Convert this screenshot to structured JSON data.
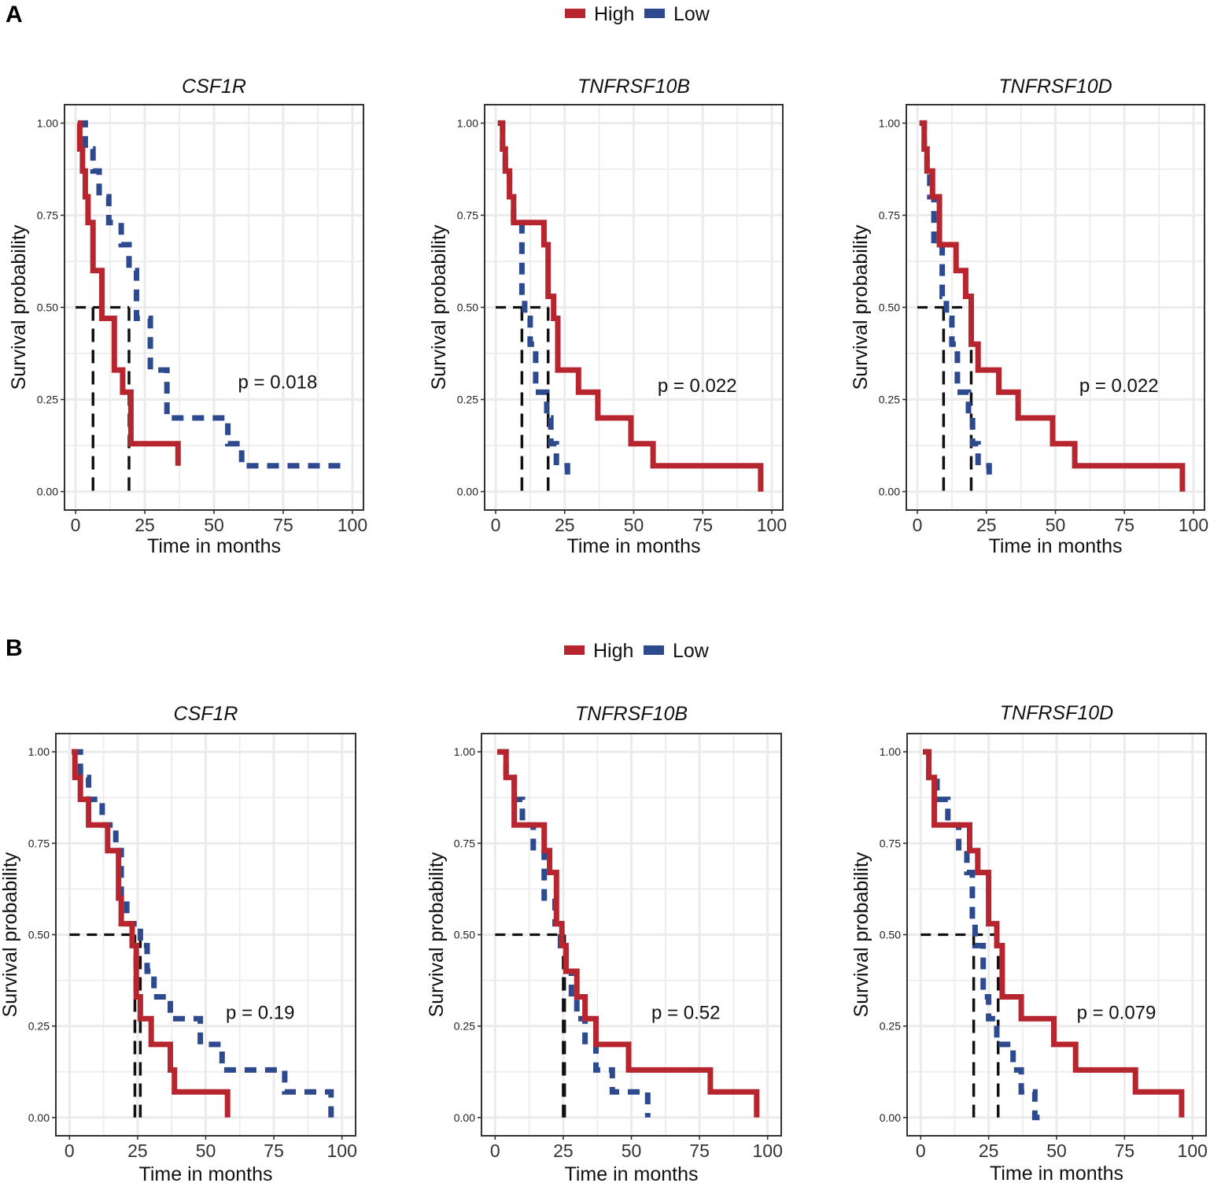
{
  "panels": [
    {
      "letter": "A",
      "legend": {
        "items": [
          {
            "label": "High",
            "color": "#B7252E"
          },
          {
            "label": "Low",
            "color": "#2E4A8F"
          }
        ]
      }
    },
    {
      "letter": "B",
      "legend": {
        "items": [
          {
            "label": "High",
            "color": "#B7252E"
          },
          {
            "label": "Low",
            "color": "#2E4A8F"
          }
        ]
      }
    }
  ],
  "chart_data": [
    {
      "panel": "A",
      "type": "line",
      "title": "CSF1R",
      "xlabel": "Time in months",
      "ylabel": "Survival probability",
      "xlim": [
        -4,
        104
      ],
      "ylim": [
        -0.05,
        1.05
      ],
      "xticks": [
        0,
        25,
        50,
        75,
        100
      ],
      "yticks": [
        0,
        0.25,
        0.5,
        0.75,
        1.0
      ],
      "ytick_labels": [
        "0.00",
        "0.25",
        "0.50",
        "0.75",
        "1.00"
      ],
      "pvalue": "p = 0.018",
      "pvalue_pos": [
        73,
        0.28
      ],
      "median_lines": [
        6.3,
        19.3
      ],
      "series": [
        {
          "name": "High",
          "color": "#B7252E",
          "dashed": false,
          "x": [
            0.8,
            1.5,
            2.5,
            3.5,
            4.5,
            6.3,
            9.5,
            14,
            17,
            20,
            37
          ],
          "y": [
            1.0,
            0.93,
            0.87,
            0.8,
            0.73,
            0.6,
            0.47,
            0.33,
            0.27,
            0.13,
            0.07
          ]
        },
        {
          "name": "Low",
          "color": "#2E4A8F",
          "dashed": true,
          "x": [
            0.8,
            3.5,
            6.3,
            8.5,
            12,
            16.5,
            19.3,
            22,
            27,
            33,
            50,
            55,
            60,
            97
          ],
          "y": [
            1.0,
            0.93,
            0.87,
            0.8,
            0.73,
            0.67,
            0.6,
            0.47,
            0.33,
            0.2,
            0.2,
            0.13,
            0.07,
            0.07
          ]
        }
      ]
    },
    {
      "panel": "A",
      "type": "line",
      "title": "TNFRSF10B",
      "xlabel": "Time in months",
      "ylabel": "Survival probability",
      "xlim": [
        -4,
        104
      ],
      "ylim": [
        -0.05,
        1.05
      ],
      "xticks": [
        0,
        25,
        50,
        75,
        100
      ],
      "yticks": [
        0,
        0.25,
        0.5,
        0.75,
        1.0
      ],
      "ytick_labels": [
        "0.00",
        "0.25",
        "0.50",
        "0.75",
        "1.00"
      ],
      "pvalue": "p = 0.022",
      "pvalue_pos": [
        73,
        0.27
      ],
      "median_lines": [
        9.5,
        19
      ],
      "series": [
        {
          "name": "High",
          "color": "#B7252E",
          "dashed": false,
          "x": [
            0.8,
            2.5,
            3.5,
            5,
            6.5,
            17.5,
            19,
            21,
            22.5,
            30,
            37,
            49,
            57,
            96
          ],
          "y": [
            1.0,
            0.93,
            0.87,
            0.8,
            0.73,
            0.67,
            0.53,
            0.47,
            0.33,
            0.27,
            0.2,
            0.13,
            0.07,
            0.0
          ]
        },
        {
          "name": "Low",
          "color": "#2E4A8F",
          "dashed": true,
          "x": [
            0.8,
            2.5,
            3.5,
            5,
            6.5,
            9.5,
            10.5,
            12.5,
            14.5,
            18.5,
            20,
            22,
            26
          ],
          "y": [
            1.0,
            0.93,
            0.87,
            0.8,
            0.73,
            0.53,
            0.47,
            0.4,
            0.27,
            0.2,
            0.13,
            0.07,
            0.03
          ]
        }
      ]
    },
    {
      "panel": "A",
      "type": "line",
      "title": "TNFRSF10D",
      "xlabel": "Time in months",
      "ylabel": "Survival probability",
      "xlim": [
        -4,
        104
      ],
      "ylim": [
        -0.05,
        1.05
      ],
      "xticks": [
        0,
        25,
        50,
        75,
        100
      ],
      "yticks": [
        0,
        0.25,
        0.5,
        0.75,
        1.0
      ],
      "ytick_labels": [
        "0.00",
        "0.25",
        "0.50",
        "0.75",
        "1.00"
      ],
      "pvalue": "p = 0.022",
      "pvalue_pos": [
        73,
        0.27
      ],
      "median_lines": [
        9.5,
        19.5
      ],
      "series": [
        {
          "name": "High",
          "color": "#B7252E",
          "dashed": false,
          "x": [
            0.8,
            2.5,
            3.5,
            5.5,
            8,
            14,
            17.5,
            19.5,
            22,
            29.5,
            36.5,
            49,
            57,
            96
          ],
          "y": [
            1.0,
            0.93,
            0.87,
            0.8,
            0.67,
            0.6,
            0.53,
            0.4,
            0.33,
            0.27,
            0.2,
            0.13,
            0.07,
            0.0
          ]
        },
        {
          "name": "Low",
          "color": "#2E4A8F",
          "dashed": true,
          "x": [
            0.8,
            2.5,
            3.5,
            4.5,
            6,
            9,
            10.5,
            12.5,
            14.5,
            18.5,
            20,
            22,
            26
          ],
          "y": [
            1.0,
            0.93,
            0.87,
            0.8,
            0.67,
            0.53,
            0.47,
            0.4,
            0.27,
            0.2,
            0.13,
            0.07,
            0.03
          ]
        }
      ]
    },
    {
      "panel": "B",
      "type": "line",
      "title": "CSF1R",
      "xlabel": "Time in months",
      "ylabel": "Survival probability",
      "xlim": [
        -5,
        105
      ],
      "ylim": [
        -0.05,
        1.05
      ],
      "xticks": [
        0,
        25,
        50,
        75,
        100
      ],
      "yticks": [
        0,
        0.25,
        0.5,
        0.75,
        1.0
      ],
      "ytick_labels": [
        "0.00",
        "0.25",
        "0.50",
        "0.75",
        "1.00"
      ],
      "pvalue": "p = 0.19",
      "pvalue_pos": [
        70,
        0.27
      ],
      "median_lines": [
        24,
        26
      ],
      "series": [
        {
          "name": "High",
          "color": "#B7252E",
          "dashed": false,
          "x": [
            0.8,
            2,
            4,
            7,
            14,
            18,
            19,
            23,
            24.5,
            26,
            30,
            37,
            38.5,
            58
          ],
          "y": [
            1.0,
            0.93,
            0.87,
            0.8,
            0.73,
            0.6,
            0.53,
            0.47,
            0.33,
            0.27,
            0.2,
            0.13,
            0.07,
            0.0
          ]
        },
        {
          "name": "Low",
          "color": "#2E4A8F",
          "dashed": true,
          "x": [
            0.8,
            4,
            7,
            12,
            17,
            19,
            21,
            26,
            28.5,
            31,
            37,
            48,
            56,
            79,
            86,
            96
          ],
          "y": [
            1.0,
            0.93,
            0.87,
            0.8,
            0.73,
            0.6,
            0.53,
            0.47,
            0.4,
            0.33,
            0.27,
            0.2,
            0.13,
            0.07,
            0.07,
            0.0
          ]
        }
      ]
    },
    {
      "panel": "B",
      "type": "line",
      "title": "TNFRSF10B",
      "xlabel": "Time in months",
      "ylabel": "Survival probability",
      "xlim": [
        -5,
        105
      ],
      "ylim": [
        -0.05,
        1.05
      ],
      "xticks": [
        0,
        25,
        50,
        75,
        100
      ],
      "yticks": [
        0,
        0.25,
        0.5,
        0.75,
        1.0
      ],
      "ytick_labels": [
        "0.00",
        "0.25",
        "0.50",
        "0.75",
        "1.00"
      ],
      "pvalue": "p = 0.52",
      "pvalue_pos": [
        70,
        0.27
      ],
      "median_lines": [
        25,
        25.5
      ],
      "series": [
        {
          "name": "High",
          "color": "#B7252E",
          "dashed": false,
          "x": [
            0.8,
            4,
            7,
            14,
            18,
            20,
            22.5,
            24.5,
            26,
            30,
            33,
            37,
            49,
            79,
            96
          ],
          "y": [
            1.0,
            0.93,
            0.8,
            0.8,
            0.73,
            0.67,
            0.53,
            0.47,
            0.4,
            0.33,
            0.27,
            0.2,
            0.13,
            0.07,
            0.0
          ]
        },
        {
          "name": "Low",
          "color": "#2E4A8F",
          "dashed": true,
          "x": [
            0.8,
            4,
            7,
            10,
            14,
            18,
            22,
            24,
            26,
            28,
            30,
            33,
            37,
            43,
            48,
            56
          ],
          "y": [
            1.0,
            0.93,
            0.87,
            0.8,
            0.73,
            0.6,
            0.53,
            0.47,
            0.4,
            0.33,
            0.27,
            0.2,
            0.13,
            0.07,
            0.07,
            0.0
          ]
        }
      ]
    },
    {
      "panel": "B",
      "type": "line",
      "title": "TNFRSF10D",
      "xlabel": "Time in months",
      "ylabel": "Survival probability",
      "xlim": [
        -5,
        105
      ],
      "ylim": [
        -0.05,
        1.05
      ],
      "xticks": [
        0,
        25,
        50,
        75,
        100
      ],
      "yticks": [
        0,
        0.25,
        0.5,
        0.75,
        1.0
      ],
      "ytick_labels": [
        "0.00",
        "0.25",
        "0.50",
        "0.75",
        "1.00"
      ],
      "pvalue": "p = 0.079",
      "pvalue_pos": [
        72,
        0.27
      ],
      "median_lines": [
        19.5,
        28.5
      ],
      "series": [
        {
          "name": "High",
          "color": "#B7252E",
          "dashed": false,
          "x": [
            0.8,
            3,
            5,
            6.5,
            18,
            21,
            25,
            28,
            30,
            37,
            49,
            57,
            79,
            96
          ],
          "y": [
            1.0,
            0.93,
            0.8,
            0.8,
            0.73,
            0.67,
            0.53,
            0.47,
            0.33,
            0.27,
            0.2,
            0.13,
            0.07,
            0.0
          ]
        },
        {
          "name": "Low",
          "color": "#2E4A8F",
          "dashed": true,
          "x": [
            0.8,
            3,
            6,
            10,
            14,
            17,
            19,
            20,
            23,
            25,
            28,
            34,
            37,
            42,
            44
          ],
          "y": [
            1.0,
            0.93,
            0.87,
            0.8,
            0.73,
            0.67,
            0.53,
            0.47,
            0.33,
            0.27,
            0.2,
            0.13,
            0.07,
            0.0,
            0.0
          ]
        }
      ]
    }
  ]
}
